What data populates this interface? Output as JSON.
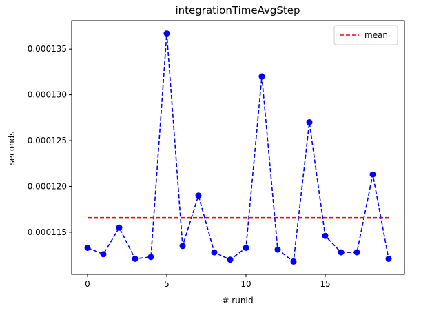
{
  "chart_data": {
    "type": "line",
    "title": "integrationTimeAvgStep",
    "xlabel": "# runId",
    "ylabel": "seconds",
    "x": [
      0,
      1,
      2,
      3,
      4,
      5,
      6,
      7,
      8,
      9,
      10,
      11,
      12,
      13,
      14,
      15,
      16,
      17,
      18,
      19
    ],
    "series": [
      {
        "name": "",
        "color": "#0000ff",
        "style": "dashed line with circle markers",
        "values": [
          0.0001133,
          0.0001126,
          0.0001155,
          0.0001121,
          0.0001123,
          0.0001367,
          0.0001135,
          0.000119,
          0.0001128,
          0.000112,
          0.0001133,
          0.000132,
          0.0001131,
          0.0001118,
          0.000127,
          0.0001146,
          0.0001128,
          0.0001128,
          0.0001213,
          0.0001121
        ]
      },
      {
        "name": "mean",
        "color": "#ff0000",
        "style": "dashed line",
        "x_range": [
          0,
          19
        ],
        "value": 0.0001166
      }
    ],
    "xlim": [
      -1,
      20
    ],
    "ylim": [
      0.0001104,
      0.0001381
    ],
    "xticks": [
      0,
      5,
      10,
      15
    ],
    "xtick_labels": [
      "0",
      "5",
      "10",
      "15"
    ],
    "yticks": [
      0.000115,
      0.00012,
      0.000125,
      0.00013,
      0.000135
    ],
    "ytick_labels": [
      "0.000115",
      "0.000120",
      "0.000125",
      "0.000130",
      "0.000135"
    ],
    "grid": false,
    "legend": {
      "position": "top-right",
      "entries": [
        "mean"
      ]
    }
  }
}
